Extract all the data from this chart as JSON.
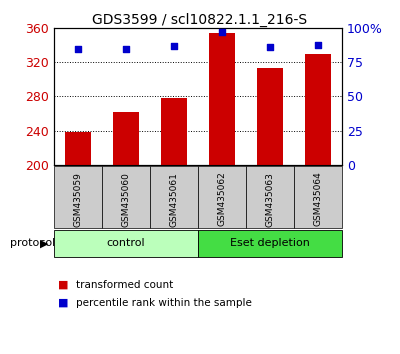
{
  "title": "GDS3599 / scl10822.1.1_216-S",
  "samples": [
    "GSM435059",
    "GSM435060",
    "GSM435061",
    "GSM435062",
    "GSM435063",
    "GSM435064"
  ],
  "transformed_count": [
    238,
    262,
    278,
    355,
    313,
    330
  ],
  "percentile_rank": [
    85,
    85,
    87,
    97,
    86,
    88
  ],
  "ylim_left": [
    200,
    360
  ],
  "ylim_right": [
    0,
    100
  ],
  "yticks_left": [
    200,
    240,
    280,
    320,
    360
  ],
  "yticks_right": [
    0,
    25,
    50,
    75,
    100
  ],
  "ytick_labels_right": [
    "0",
    "25",
    "50",
    "75",
    "100%"
  ],
  "bar_color": "#cc0000",
  "scatter_color": "#0000cc",
  "bar_width": 0.55,
  "groups": [
    {
      "label": "control",
      "indices": [
        0,
        1,
        2
      ],
      "color": "#bbffbb"
    },
    {
      "label": "Eset depletion",
      "indices": [
        3,
        4,
        5
      ],
      "color": "#44dd44"
    }
  ],
  "protocol_label": "protocol",
  "legend_bar_label": "transformed count",
  "legend_scatter_label": "percentile rank within the sample",
  "background_color": "#ffffff",
  "tick_area_color": "#cccccc",
  "title_fontsize": 10,
  "tick_fontsize": 9,
  "label_fontsize": 8
}
